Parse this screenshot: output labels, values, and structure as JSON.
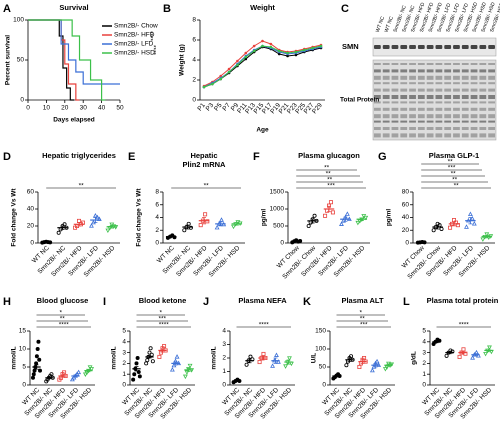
{
  "chart_data": [
    {
      "type": "step",
      "panel": "A",
      "title": "Survival",
      "ylabel": "Percent survival",
      "xlabel": "Days elapsed",
      "xlim": [
        0,
        50
      ],
      "xticks": [
        0,
        10,
        20,
        30,
        40,
        50
      ],
      "ylim": [
        0,
        100
      ],
      "yticks": [
        0,
        50,
        100
      ],
      "series": [
        {
          "name": "Smn2B/- Chow",
          "color": "#000000",
          "x": [
            0,
            17,
            17,
            19,
            19,
            21,
            21,
            23,
            23,
            25
          ],
          "values": [
            100,
            100,
            80,
            80,
            40,
            40,
            15,
            15,
            0,
            0
          ]
        },
        {
          "name": "Smn2B/- HFD",
          "color": "#e8413c",
          "x": [
            0,
            18,
            18,
            20,
            20,
            22,
            22,
            26,
            26,
            28
          ],
          "values": [
            100,
            100,
            75,
            75,
            45,
            45,
            20,
            20,
            0,
            0
          ]
        },
        {
          "name": "Smn2B/- LFD",
          "color": "#3b6fd6",
          "x": [
            0,
            18,
            18,
            22,
            22,
            26,
            26,
            30,
            30,
            50
          ],
          "values": [
            100,
            100,
            70,
            70,
            50,
            50,
            35,
            35,
            20,
            20
          ]
        },
        {
          "name": "Smn2B/- HSD",
          "color": "#3cc04a",
          "x": [
            0,
            24,
            24,
            28,
            28,
            34,
            34,
            40,
            40,
            42
          ],
          "values": [
            100,
            100,
            80,
            80,
            50,
            50,
            25,
            25,
            0,
            0
          ]
        }
      ],
      "annotations": [
        "****",
        "****"
      ]
    },
    {
      "type": "line",
      "panel": "B",
      "title": "Weight",
      "ylabel": "Weight (g)",
      "xlabel": "Age",
      "categories": [
        "P1",
        "P3",
        "P5",
        "P7",
        "P9",
        "P11",
        "P13",
        "P15",
        "P17",
        "P19",
        "P21",
        "P23",
        "P25",
        "P27",
        "P29"
      ],
      "ylim": [
        0,
        8
      ],
      "yticks": [
        0,
        2,
        4,
        6,
        8
      ],
      "series": [
        {
          "color": "#000000",
          "values": [
            1.3,
            1.6,
            2.1,
            2.7,
            3.4,
            4.1,
            4.8,
            5.3,
            5.1,
            4.6,
            4.4,
            4.5,
            4.8,
            5.0,
            5.2
          ]
        },
        {
          "color": "#e8413c",
          "values": [
            1.4,
            1.8,
            2.4,
            3.1,
            3.9,
            4.7,
            5.4,
            5.9,
            5.6,
            5.0,
            4.8,
            4.9,
            5.1,
            5.3,
            5.5
          ]
        },
        {
          "color": "#3b6fd6",
          "values": [
            1.3,
            1.7,
            2.2,
            2.8,
            3.6,
            4.4,
            5.0,
            5.4,
            5.2,
            4.8,
            4.6,
            4.7,
            4.9,
            5.1,
            5.3
          ]
        },
        {
          "color": "#3cc04a",
          "values": [
            1.3,
            1.6,
            2.1,
            2.8,
            3.5,
            4.3,
            4.9,
            5.4,
            5.3,
            4.9,
            4.7,
            4.8,
            5.0,
            5.2,
            5.4
          ]
        }
      ]
    },
    {
      "type": "blot",
      "panel": "C",
      "bands": [
        "SMN",
        "Total Protein"
      ],
      "lanes": [
        "WT NC",
        "WT NC",
        "Smn2B/- NC",
        "Smn2B/- NC",
        "Smn2B/- HFD",
        "Smn2B/- HFD",
        "Smn2B/- HFD",
        "Smn2B/- LFD",
        "Smn2B/- LFD",
        "Smn2B/- LFD",
        "Smn2B/- HSD",
        "Smn2B/- HSD",
        "Smn2B/- HSD",
        "Smn2B/- HSD"
      ]
    },
    {
      "type": "dot",
      "panel": "D",
      "title": "Hepatic triglycerides",
      "ylabel": "Fold change Vs Wt",
      "categories": [
        "WT NC",
        "Smn2B/- NC",
        "Smn2B/- HFD",
        "Smn2B/- LFD",
        "Smn2B/- HSD"
      ],
      "colors": [
        "#000000",
        "#000000",
        "#e8413c",
        "#3b6fd6",
        "#3cc04a"
      ],
      "markers": [
        "circle-filled",
        "circle",
        "square",
        "triangle",
        "triangle-down"
      ],
      "points": [
        [
          0.5,
          1,
          1.5,
          1,
          0.8
        ],
        [
          12,
          16,
          20,
          22,
          18
        ],
        [
          18,
          20,
          26,
          22,
          24
        ],
        [
          20,
          24,
          32,
          30,
          28
        ],
        [
          15,
          18,
          22,
          20,
          19
        ]
      ],
      "means": [
        1,
        18,
        22,
        27,
        19
      ],
      "sems": [
        0.3,
        2,
        2,
        3,
        1.5
      ],
      "ylim": [
        0,
        60
      ],
      "yticks": [
        0,
        20,
        40,
        60
      ],
      "annotations": [
        "**"
      ]
    },
    {
      "type": "dot",
      "panel": "E",
      "title": [
        "Hepatic",
        "Plin2 mRNA"
      ],
      "ylabel": "Fold change Vs Wt",
      "categories": [
        "WT NC",
        "Smn2B/- NC",
        "Smn2B/- HFD",
        "Smn2B/- LFD",
        "Smn2B/- HSD"
      ],
      "colors": [
        "#000000",
        "#000000",
        "#e8413c",
        "#3b6fd6",
        "#3cc04a"
      ],
      "markers": [
        "circle-filled",
        "circle",
        "square",
        "triangle",
        "triangle-down"
      ],
      "points": [
        [
          0.8,
          1,
          1.2,
          0.9
        ],
        [
          2,
          2.5,
          3,
          2.4
        ],
        [
          2.8,
          3.5,
          4.5,
          3.4
        ],
        [
          2.4,
          3,
          3.6,
          2.9
        ],
        [
          2.6,
          3,
          3.3,
          3.1
        ]
      ],
      "means": [
        1,
        2.5,
        3.5,
        3,
        3
      ],
      "sems": [
        0.1,
        0.3,
        0.5,
        0.3,
        0.2
      ],
      "ylim": [
        0,
        8
      ],
      "yticks": [
        0,
        2,
        4,
        6,
        8
      ],
      "annotations": [
        "**"
      ]
    },
    {
      "type": "dot",
      "panel": "F",
      "title": "Plasma glucagon",
      "ylabel": "pg/ml",
      "categories": [
        "WT Chow",
        "Smn2B/- Chow",
        "Smn2B/- HFD",
        "Smn2B/- LFD",
        "Smn2B/- HSD"
      ],
      "colors": [
        "#000000",
        "#000000",
        "#e8413c",
        "#3b6fd6",
        "#3cc04a"
      ],
      "markers": [
        "circle-filled",
        "circle",
        "square",
        "triangle",
        "triangle-down"
      ],
      "points": [
        [
          20,
          50,
          80,
          40,
          60
        ],
        [
          500,
          600,
          700,
          800,
          650
        ],
        [
          800,
          950,
          1100,
          1200,
          900
        ],
        [
          550,
          650,
          750,
          850,
          700
        ],
        [
          600,
          650,
          700,
          800,
          750
        ]
      ],
      "means": [
        50,
        650,
        1000,
        700,
        700
      ],
      "sems": [
        15,
        60,
        80,
        60,
        40
      ],
      "ylim": [
        0,
        1500
      ],
      "yticks": [
        0,
        500,
        1000,
        1500
      ],
      "annotations": [
        "***",
        "**",
        "**",
        "**"
      ]
    },
    {
      "type": "dot",
      "panel": "G",
      "title": "Plasma GLP-1",
      "ylabel": "pg/ml",
      "categories": [
        "WT Chow",
        "Smn2B/- Chow",
        "Smn2B/- HFD",
        "Smn2B/- LFD",
        "Smn2B/- HSD"
      ],
      "colors": [
        "#000000",
        "#000000",
        "#e8413c",
        "#3b6fd6",
        "#3cc04a"
      ],
      "markers": [
        "circle-filled",
        "circle",
        "square",
        "triangle",
        "triangle-down"
      ],
      "points": [
        [
          0.5,
          1,
          1.5,
          1
        ],
        [
          20,
          25,
          30,
          28,
          22
        ],
        [
          24,
          30,
          36,
          32,
          28
        ],
        [
          25,
          35,
          45,
          38,
          30
        ],
        [
          6,
          10,
          14,
          9,
          11
        ]
      ],
      "means": [
        1,
        25,
        30,
        35,
        10
      ],
      "sems": [
        0.3,
        3,
        3,
        5,
        2
      ],
      "ylim": [
        0,
        80
      ],
      "yticks": [
        0,
        20,
        40,
        60,
        80
      ],
      "annotations": [
        "**",
        "**",
        "**",
        "***",
        "**"
      ]
    },
    {
      "type": "dot",
      "panel": "H",
      "title": "Blood glucose",
      "ylabel": "mmol/L",
      "categories": [
        "WT NC",
        "Smn2B/- NC",
        "Smn2B/- HFD",
        "Smn2B/- LFD",
        "Smn2B/- HSD"
      ],
      "colors": [
        "#000000",
        "#000000",
        "#e8413c",
        "#3b6fd6",
        "#3cc04a"
      ],
      "markers": [
        "circle-filled",
        "circle",
        "square",
        "triangle",
        "triangle-down"
      ],
      "points": [
        [
          2,
          3,
          4,
          5,
          6,
          8,
          10,
          12,
          7,
          4
        ],
        [
          1,
          1.5,
          2,
          2.5,
          3,
          2
        ],
        [
          1.5,
          2,
          3,
          3.5,
          2.5
        ],
        [
          1.5,
          2,
          2.5,
          3,
          3.5
        ],
        [
          3,
          3.5,
          4,
          5,
          4.5
        ]
      ],
      "means": [
        5,
        2,
        2.5,
        2.5,
        4
      ],
      "sems": [
        0.6,
        0.2,
        0.3,
        0.3,
        0.3
      ],
      "ylim": [
        0,
        15
      ],
      "yticks": [
        0,
        5,
        10,
        15
      ],
      "annotations": [
        "****",
        "**",
        "*"
      ]
    },
    {
      "type": "dot",
      "panel": "I",
      "title": "Blood ketone",
      "ylabel": "mmol/L",
      "categories": [
        "WT NC",
        "Smn2B/- NC",
        "Smn2B/- HFD",
        "Smn2B/- LFD",
        "Smn2B/- HSD"
      ],
      "colors": [
        "#000000",
        "#000000",
        "#e8413c",
        "#3b6fd6",
        "#3cc04a"
      ],
      "markers": [
        "circle-filled",
        "circle",
        "square",
        "triangle",
        "triangle-down"
      ],
      "points": [
        [
          0.5,
          1,
          1.5,
          2,
          2.5,
          1.2,
          0.8
        ],
        [
          2,
          2.3,
          2.6,
          3,
          3.4,
          2.8,
          2.2
        ],
        [
          2.6,
          3,
          3.4,
          3.6,
          3.2
        ],
        [
          1.4,
          1.8,
          2.2,
          2.6,
          2
        ],
        [
          0.8,
          1.2,
          1.5,
          1.8,
          1.4
        ]
      ],
      "means": [
        1.5,
        2.6,
        3.2,
        2.0,
        1.4
      ],
      "sems": [
        0.2,
        0.1,
        0.15,
        0.15,
        0.15
      ],
      "ylim": [
        0,
        5
      ],
      "yticks": [
        0,
        1,
        2,
        3,
        4,
        5
      ],
      "annotations": [
        "****",
        "***",
        "*"
      ]
    },
    {
      "type": "dot",
      "panel": "J",
      "title": "Plasma NEFA",
      "ylabel": "mmol/L",
      "categories": [
        "WT NC",
        "Smn2B/- NC",
        "Smn2B/- HFD",
        "Smn2B/- LFD",
        "Smn2B/- HSD"
      ],
      "colors": [
        "#000000",
        "#000000",
        "#e8413c",
        "#3b6fd6",
        "#3cc04a"
      ],
      "markers": [
        "circle-filled",
        "circle",
        "square",
        "triangle",
        "triangle-down"
      ],
      "points": [
        [
          0.2,
          0.3,
          0.4,
          0.3
        ],
        [
          1.5,
          1.8,
          2.1,
          1.9
        ],
        [
          1.7,
          2.0,
          2.3,
          2.0
        ],
        [
          1.4,
          1.8,
          2.2,
          1.7
        ],
        [
          1.4,
          1.7,
          2.0,
          1.6
        ]
      ],
      "means": [
        0.3,
        1.8,
        2.0,
        1.8,
        1.7
      ],
      "sems": [
        0.05,
        0.15,
        0.15,
        0.2,
        0.15
      ],
      "ylim": [
        0,
        4
      ],
      "yticks": [
        0,
        1,
        2,
        3,
        4
      ],
      "annotations": [
        "****"
      ]
    },
    {
      "type": "dot",
      "panel": "K",
      "title": "Plasma ALT",
      "ylabel": "U/L",
      "categories": [
        "WT NC",
        "Smn2B/- NC",
        "Smn2B/- HFD",
        "Smn2B/- LFD",
        "Smn2B/- HSD"
      ],
      "colors": [
        "#000000",
        "#000000",
        "#e8413c",
        "#3b6fd6",
        "#3cc04a"
      ],
      "markers": [
        "circle-filled",
        "circle",
        "square",
        "triangle",
        "triangle-down"
      ],
      "points": [
        [
          18,
          22,
          26,
          30,
          25
        ],
        [
          55,
          65,
          75,
          80,
          70
        ],
        [
          50,
          60,
          70,
          75,
          65
        ],
        [
          40,
          50,
          60,
          65,
          55
        ],
        [
          45,
          50,
          60,
          55,
          58
        ]
      ],
      "means": [
        25,
        70,
        65,
        55,
        55
      ],
      "sems": [
        2,
        5,
        5,
        5,
        3
      ],
      "ylim": [
        0,
        150
      ],
      "yticks": [
        0,
        50,
        100,
        150
      ],
      "annotations": [
        "***",
        "**",
        "*"
      ]
    },
    {
      "type": "dot",
      "panel": "L",
      "title": "Plasma total protein",
      "ylabel": "g/dL",
      "categories": [
        "WT NC",
        "Smn2B/- NC",
        "Smn2B/- HFD",
        "Smn2B/- LFD",
        "Smn2B/- HSD"
      ],
      "colors": [
        "#000000",
        "#000000",
        "#e8413c",
        "#3b6fd6",
        "#3cc04a"
      ],
      "markers": [
        "circle-filled",
        "circle",
        "square",
        "triangle",
        "triangle-down"
      ],
      "points": [
        [
          3.8,
          4.0,
          4.2,
          4.1
        ],
        [
          2.7,
          3.0,
          3.2,
          3.1
        ],
        [
          2.6,
          3.0,
          3.3,
          2.9
        ],
        [
          2.5,
          2.8,
          3.0,
          2.7
        ],
        [
          2.9,
          3.2,
          3.5,
          3.1
        ]
      ],
      "means": [
        4.0,
        3.0,
        3.0,
        2.8,
        3.2
      ],
      "sems": [
        0.08,
        0.1,
        0.12,
        0.1,
        0.12
      ],
      "ylim": [
        0,
        5
      ],
      "yticks": [
        0,
        1,
        2,
        3,
        4,
        5
      ],
      "annotations": [
        "****"
      ]
    }
  ]
}
